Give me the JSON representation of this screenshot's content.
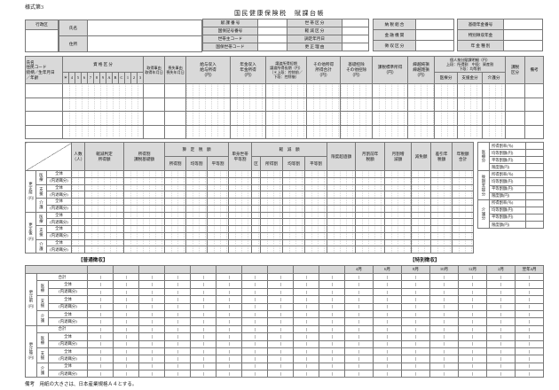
{
  "page": {
    "form_no": "様式第3",
    "title": "国民健康保険税　賦課台帳",
    "footer_note": "備考　用紙の大きさは、日本産業規格Ａ４とする。"
  },
  "household": {
    "district_label": "行政区",
    "name_label": "氏名",
    "address_label": "住所",
    "fields": [
      {
        "l": "賦 課 番 号",
        "r": "世 帯 区 分"
      },
      {
        "l": "国保記号番号",
        "r": "軽 減 区 分"
      },
      {
        "l": "世帯主コード",
        "r": "調定年月日"
      },
      {
        "l": "国保世帯コード",
        "r": "更 正 理 由"
      }
    ],
    "collection": [
      "納 税 組 合",
      "金 融 機 関",
      "徴 収 区 分"
    ],
    "pension": [
      "基礎年金番号",
      "特別徴収年金",
      "年 金 種 別"
    ]
  },
  "members": {
    "cols": {
      "person": "氏名\n住民コード\n続柄／生年月日\n／年齢",
      "qualification": "資 格 区 分",
      "qual_codes": [
        "＊",
        "4",
        "5",
        "6",
        "7",
        "8",
        "9",
        "A",
        "B",
        "C",
        "1",
        "2",
        "3"
      ],
      "acquire": "取得事由\n取得年月日",
      "loss": "喪失事由\n喪失年月日",
      "salary": "給与収入\n給与所得\n（円）",
      "pension": "年金収入\n年金所得\n（円）",
      "transfer": "譲渡所得短期\n譲渡所得長期（円）\n（＊上段：控除前／\n下段：控除後）",
      "other": "その他所得\n所得合計\n（円）",
      "deduction": "基礎控除\nその他控除\n（円）",
      "taxable": "課税標準所得\n（円）",
      "carryover": "繰越純損\n繰越雑損\n（円）",
      "detail_group": "個人按分賦課明細（円）\n上段：所得割　中段：資産割\n下段：均等割",
      "detail_cols": [
        "医療分",
        "支援金分",
        "介護分"
      ],
      "tax_class": "課税\n区分",
      "remarks": "備考"
    },
    "row_count": 4
  },
  "calc": {
    "cols": {
      "people": "人数\n（人）",
      "reduction_judge": "軽減判定\n所得額",
      "income_base": "所得割\n課税基礎額",
      "calc_group": "算　定　税　額",
      "calc_sub": [
        "所得割",
        "均等割",
        "平等割"
      ],
      "single": "単身世帯\n平等割",
      "reduction_group": "軽　減　額",
      "reduction_sub": [
        "区",
        "所得割",
        "均等割",
        "平等割"
      ],
      "over_limit": "限度超過額",
      "prev_year": "月割前年\n税額",
      "monthly_adj": "月割増\n減額",
      "exemption": "減免額",
      "net_tax": "差引年\n税額",
      "total_tax": "年税額\n合計"
    },
    "groups": [
      {
        "label": "更正前",
        "unit": "（円）"
      },
      {
        "label": "更正後",
        "unit": "（円）"
      }
    ],
    "categories": [
      {
        "label": "医療",
        "rows": [
          "全体",
          "(内退職分)"
        ]
      },
      {
        "label": "支援",
        "rows": [
          "全体",
          "(内退職分)"
        ]
      },
      {
        "label": "介護",
        "rows": [
          "全体",
          "(内退職分)"
        ]
      }
    ]
  },
  "rates": {
    "groups": [
      "医療分",
      "後期支援分",
      "介護分"
    ],
    "rows": [
      "所得割率(％)",
      "均等割額(円)",
      "平等割額(円)",
      "限度額(円)"
    ]
  },
  "payments": {
    "normal_title": "【普通徴収】",
    "special_title": "【特別徴収】",
    "normal_col_count": 10,
    "months": [
      "4月",
      "6月",
      "8月",
      "10月",
      "12月",
      "2月",
      "翌年4月"
    ],
    "total_label": "合計",
    "groups": [
      {
        "label": "更正前",
        "unit": "（円）"
      },
      {
        "label": "更正後",
        "unit": "（円）"
      }
    ],
    "categories": [
      {
        "label": "医療",
        "rows": [
          "全体",
          "(内退職分)"
        ]
      },
      {
        "label": "支援",
        "rows": [
          "全体",
          "(内退職分)"
        ]
      },
      {
        "label": "介護",
        "rows": [
          "全体",
          "(内退職分)"
        ]
      }
    ]
  },
  "colors": {
    "header_bg": "#d9d9d9",
    "border": "#787878"
  }
}
